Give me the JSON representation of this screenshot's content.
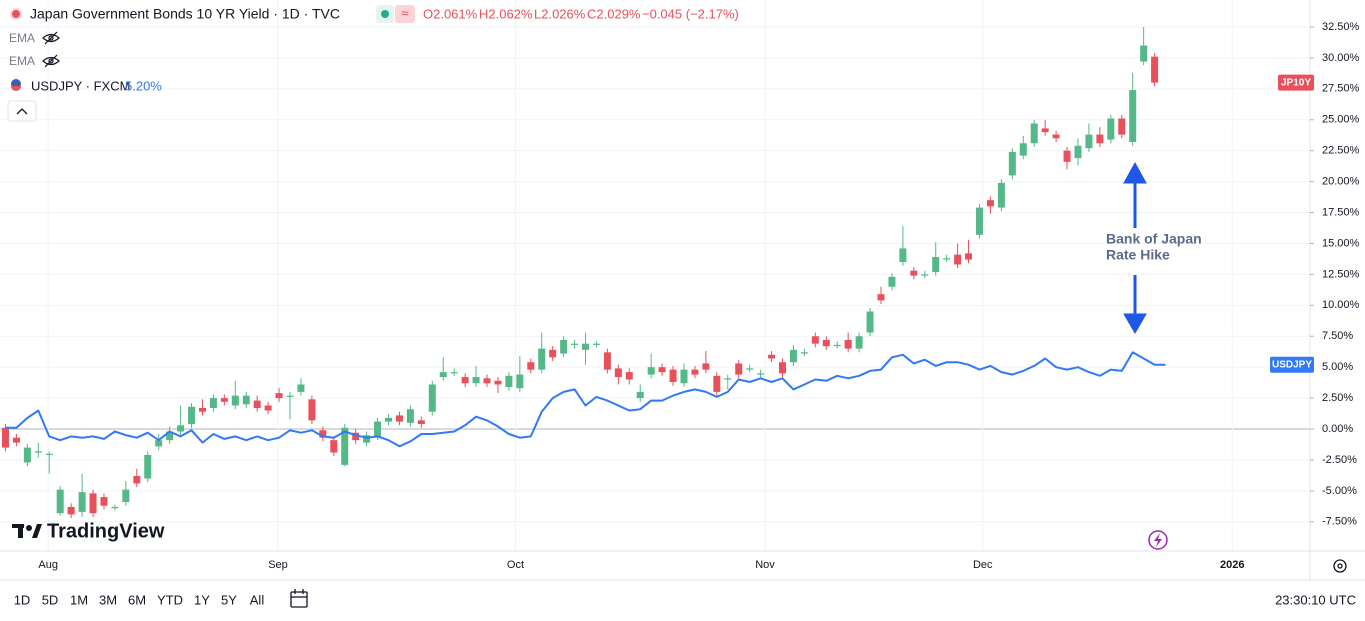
{
  "chart_data": {
    "type": "candlestick",
    "title": "Japan Government Bonds 10 YR Yield · 1D · TVC",
    "annotations": [
      "Bank of Japan",
      "Rate Hike"
    ],
    "xlim": [
      -0.5,
      119.2
    ],
    "xticks": [
      {
        "value": 3.9,
        "label": "Aug"
      },
      {
        "value": 24.9,
        "label": "Sep"
      },
      {
        "value": 46.6,
        "label": "Oct"
      },
      {
        "value": 69.4,
        "label": "Nov"
      },
      {
        "value": 89.3,
        "label": "Dec"
      },
      {
        "value": 112.1,
        "label": "2026"
      }
    ],
    "ylim": [
      -9.86,
      34.68
    ],
    "yticks": [
      {
        "value": -7.5,
        "label": "-7.50%"
      },
      {
        "value": -5,
        "label": "-5.00%"
      },
      {
        "value": -2.5,
        "label": "-2.50%"
      },
      {
        "value": 0,
        "label": "0.00%"
      },
      {
        "value": 2.5,
        "label": "2.50%"
      },
      {
        "value": 5,
        "label": "5.00%"
      },
      {
        "value": 7.5,
        "label": "7.50%"
      },
      {
        "value": 10,
        "label": "10.00%"
      },
      {
        "value": 12.5,
        "label": "12.50%"
      },
      {
        "value": 15,
        "label": "15.00%"
      },
      {
        "value": 17.5,
        "label": "17.50%"
      },
      {
        "value": 20,
        "label": "20.00%"
      },
      {
        "value": 22.5,
        "label": "22.50%"
      },
      {
        "value": 25,
        "label": "25.00%"
      },
      {
        "value": 27.5,
        "label": "27.50%"
      },
      {
        "value": 30,
        "label": "30.00%"
      },
      {
        "value": 32.5,
        "label": "32.50%"
      }
    ],
    "grid": true,
    "series": [
      {
        "name": "JP10Y",
        "type": "candlestick",
        "color": "#e8505b",
        "up_color": "#55b888",
        "down_color": "#e8505b",
        "open": [
          0.1,
          -0.7,
          -2.7,
          -1.9,
          -2.1,
          -6.8,
          -6.3,
          -6.7,
          -5.2,
          -5.5,
          -6.4,
          -5.9,
          -3.8,
          -4.0,
          -1.4,
          -0.9,
          -0.2,
          0.4,
          1.7,
          1.7,
          2.5,
          1.9,
          2.0,
          2.3,
          1.9,
          2.9,
          2.6,
          3.0,
          2.4,
          -0.1,
          -0.9,
          -2.9,
          -0.3,
          -1.1,
          -0.6,
          0.6,
          1.1,
          0.5,
          0.7,
          1.4,
          4.2,
          4.5,
          4.2,
          3.7,
          4.1,
          3.9,
          3.4,
          3.3,
          5.4,
          4.8,
          6.4,
          6.1,
          6.8,
          6.4,
          6.8,
          6.2,
          4.9,
          4.6,
          2.5,
          4.4,
          5.0,
          4.8,
          3.7,
          4.8,
          5.3,
          4.3,
          4.0,
          5.3,
          4.8,
          4.4,
          6.0,
          5.4,
          5.4,
          6.1,
          7.5,
          7.2,
          6.7,
          7.2,
          6.5,
          7.8,
          10.9,
          11.5,
          13.5,
          12.8,
          12.4,
          12.7,
          13.7,
          14.1,
          14.2,
          15.7,
          18.5,
          17.9,
          20.5,
          22.1,
          23.1,
          24.3,
          23.8,
          22.5,
          21.9,
          22.7,
          23.8,
          23.4,
          25.1,
          23.2,
          29.7,
          30.1
        ],
        "high": [
          0.4,
          -0.4,
          -1.2,
          -1.1,
          -1.8,
          -4.6,
          -6.0,
          -3.6,
          -4.9,
          -5.2,
          -6.1,
          -4.2,
          -3.2,
          -1.8,
          -0.4,
          0.2,
          1.9,
          2.1,
          2.4,
          2.8,
          2.8,
          3.9,
          3.0,
          2.7,
          2.2,
          3.3,
          3.0,
          4.1,
          2.7,
          0.2,
          -0.6,
          0.4,
          0,
          -0.2,
          0.9,
          1.2,
          1.4,
          1.9,
          1.0,
          3.9,
          5.8,
          4.9,
          4.5,
          5.1,
          4.4,
          4.2,
          4.6,
          5.9,
          5.7,
          7.8,
          6.7,
          7.5,
          7.2,
          7.8,
          7.1,
          6.5,
          5.2,
          4.9,
          3.6,
          6.1,
          5.3,
          5.1,
          5.3,
          5.1,
          6.3,
          4.6,
          4.4,
          5.6,
          5.2,
          4.8,
          6.3,
          5.7,
          6.8,
          6.5,
          7.8,
          7.5,
          7.1,
          7.8,
          7.8,
          9.8,
          11.5,
          12.6,
          16.4,
          13.1,
          12.8,
          15.1,
          14.1,
          15.0,
          15.3,
          18.2,
          18.8,
          20.2,
          22.7,
          23.7,
          25.0,
          25.0,
          24.1,
          22.8,
          23.5,
          24.7,
          24.4,
          25.4,
          25.4,
          28.8,
          32.5,
          30.4
        ],
        "low": [
          -1.8,
          -1.4,
          -3.0,
          -2.3,
          -3.6,
          -7.0,
          -7.2,
          -7.1,
          -7.1,
          -6.5,
          -6.6,
          -6.2,
          -4.7,
          -4.3,
          -1.7,
          -1.2,
          -0.5,
          0.1,
          1.1,
          1.4,
          1.9,
          1.6,
          1.7,
          1.4,
          1.2,
          2.2,
          0.8,
          2.7,
          0.4,
          -1.0,
          -2.2,
          -3.0,
          -1.2,
          -1.4,
          -0.9,
          0.3,
          0.3,
          0.2,
          0.1,
          1.1,
          3.9,
          4.3,
          3.4,
          3.4,
          3.4,
          2.9,
          3.1,
          3.0,
          4.5,
          4.5,
          5.5,
          5.8,
          6.5,
          5.2,
          6.6,
          4.5,
          3.6,
          3.6,
          2.2,
          4.1,
          4.3,
          3.5,
          3.4,
          4.1,
          4.5,
          2.7,
          3.2,
          4.1,
          4.6,
          4.1,
          5.4,
          4.2,
          5.1,
          5.9,
          6.6,
          6.4,
          6.5,
          6.2,
          6.2,
          7.5,
          10.1,
          11.2,
          13.2,
          12.1,
          12.2,
          12.4,
          13.5,
          13.0,
          13.4,
          15.4,
          17.4,
          17.6,
          20.2,
          21.8,
          22.8,
          23.7,
          23.2,
          21.0,
          21.3,
          22.4,
          22.8,
          23.1,
          23.5,
          22.9,
          29.4,
          27.7
        ],
        "close": [
          -1.5,
          -1.1,
          -1.5,
          -1.8,
          -2.0,
          -4.9,
          -6.9,
          -5.1,
          -6.8,
          -6.2,
          -6.3,
          -4.9,
          -4.4,
          -2.1,
          -0.9,
          -0.2,
          0.3,
          1.8,
          1.4,
          2.5,
          2.2,
          2.7,
          2.7,
          1.7,
          1.5,
          2.5,
          2.7,
          3.6,
          0.7,
          -0.7,
          -1.9,
          0.1,
          -0.9,
          -0.5,
          0.6,
          0.9,
          0.6,
          1.6,
          0.4,
          3.6,
          4.6,
          4.6,
          3.7,
          4.2,
          3.7,
          3.6,
          4.3,
          4.4,
          4.8,
          6.5,
          5.8,
          7.2,
          6.9,
          6.9,
          6.9,
          4.8,
          4.2,
          4.0,
          3.0,
          5.0,
          4.6,
          3.8,
          4.8,
          4.4,
          4.8,
          3.0,
          4.1,
          4.4,
          4.9,
          4.5,
          5.7,
          4.5,
          6.4,
          6.2,
          6.9,
          6.7,
          6.8,
          6.5,
          7.5,
          9.5,
          10.4,
          12.3,
          14.6,
          12.4,
          12.5,
          13.9,
          13.8,
          13.3,
          13.7,
          17.9,
          18.0,
          19.9,
          22.4,
          23.1,
          24.7,
          24.0,
          23.5,
          21.6,
          22.9,
          23.8,
          23.1,
          25.1,
          23.8,
          27.4,
          31.0,
          28.0
        ]
      },
      {
        "name": "USDJPY",
        "type": "line",
        "color": "#3179f5",
        "values": [
          0.1,
          0.1,
          0.9,
          1.5,
          -0.6,
          -0.9,
          -0.6,
          -0.7,
          -0.6,
          -0.8,
          -0.2,
          -0.5,
          -0.7,
          -0.3,
          -0.9,
          -0.2,
          -0.6,
          -0.1,
          -1.1,
          -0.4,
          -0.8,
          -0.6,
          -0.9,
          -0.6,
          -0.9,
          -0.7,
          -0.1,
          -0.3,
          -0.1,
          -0.6,
          -0.7,
          -0.2,
          -0.5,
          -0.7,
          -0.6,
          -0.9,
          -1.4,
          -1.0,
          -0.4,
          -0.4,
          -0.3,
          -0.2,
          0.3,
          1.0,
          0.7,
          0.2,
          -0.4,
          -0.7,
          -0.6,
          1.4,
          2.5,
          3.0,
          3.2,
          1.9,
          2.6,
          2.3,
          1.9,
          1.5,
          1.6,
          2.3,
          2.3,
          2.7,
          3.0,
          3.2,
          3.0,
          2.6,
          3.0,
          4.0,
          3.8,
          4.1,
          3.8,
          4.1,
          3.2,
          3.6,
          4.0,
          3.9,
          4.3,
          4.1,
          4.3,
          4.7,
          4.8,
          5.8,
          6.0,
          5.3,
          5.6,
          5.1,
          5.4,
          5.4,
          5.2,
          4.8,
          5.1,
          4.6,
          4.4,
          4.7,
          5.1,
          5.7,
          5.0,
          4.8,
          5.0,
          4.6,
          4.3,
          4.8,
          4.7,
          6.2,
          5.7,
          5.2,
          5.2
        ]
      }
    ]
  },
  "ui": {
    "ohlc": [
      "O2.061%",
      "H2.062%",
      "L2.026%",
      "C2.029%",
      "−0.045 (−2.17%)"
    ],
    "indicators": [
      "EMA",
      "EMA"
    ],
    "compare": "USDJPY · FXCM",
    "compare_value": "5.20%",
    "logo": "TradingView",
    "ranges": [
      "1D",
      "5D",
      "1M",
      "3M",
      "6M",
      "YTD",
      "1Y",
      "5Y",
      "All"
    ],
    "clock": "23:30:10 UTC"
  }
}
